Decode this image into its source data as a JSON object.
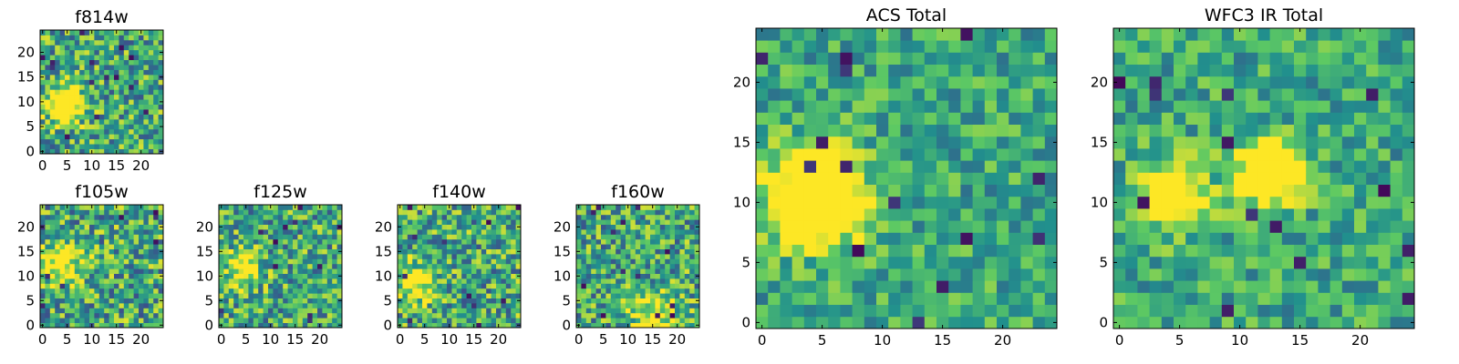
{
  "colormap": [
    "#440154",
    "#3b528b",
    "#21908d",
    "#5dc963",
    "#fde725"
  ],
  "chart_data": [
    {
      "type": "heatmap",
      "title": "f814w",
      "grid": [
        25,
        25
      ],
      "xlim": [
        0,
        25
      ],
      "ylim": [
        0,
        25
      ],
      "xticks": [
        0,
        5,
        10,
        15,
        20
      ],
      "yticks": [
        0,
        5,
        10,
        15,
        20
      ],
      "noise": 0.68,
      "blobs": [
        {
          "x": 4.5,
          "y": 9.5,
          "r": 2.4,
          "amp": 1.0
        }
      ],
      "sinks": 14
    },
    {
      "type": "heatmap",
      "title": "f105w",
      "grid": [
        25,
        25
      ],
      "xlim": [
        0,
        25
      ],
      "ylim": [
        0,
        25
      ],
      "xticks": [
        0,
        5,
        10,
        15,
        20
      ],
      "yticks": [
        0,
        5,
        10,
        15,
        20
      ],
      "noise": 0.72,
      "blobs": [
        {
          "x": 3.5,
          "y": 12.5,
          "r": 3.0,
          "amp": 0.55
        }
      ],
      "sinks": 8
    },
    {
      "type": "heatmap",
      "title": "f125w",
      "grid": [
        25,
        25
      ],
      "xlim": [
        0,
        25
      ],
      "ylim": [
        0,
        25
      ],
      "xticks": [
        0,
        5,
        10,
        15,
        20
      ],
      "yticks": [
        0,
        5,
        10,
        15,
        20
      ],
      "noise": 0.68,
      "blobs": [
        {
          "x": 4.5,
          "y": 11.5,
          "r": 2.6,
          "amp": 0.5
        }
      ],
      "sinks": 11
    },
    {
      "type": "heatmap",
      "title": "f140w",
      "grid": [
        25,
        25
      ],
      "xlim": [
        0,
        25
      ],
      "ylim": [
        0,
        25
      ],
      "xticks": [
        0,
        5,
        10,
        15,
        20
      ],
      "yticks": [
        0,
        5,
        10,
        15,
        20
      ],
      "noise": 0.7,
      "blobs": [
        {
          "x": 3.5,
          "y": 8.5,
          "r": 2.8,
          "amp": 0.5
        }
      ],
      "sinks": 11
    },
    {
      "type": "heatmap",
      "title": "f160w",
      "grid": [
        25,
        25
      ],
      "xlim": [
        0,
        25
      ],
      "ylim": [
        0,
        25
      ],
      "xticks": [
        0,
        5,
        10,
        15,
        20
      ],
      "yticks": [
        0,
        5,
        10,
        15,
        20
      ],
      "noise": 0.68,
      "blobs": [
        {
          "x": 15.5,
          "y": 2.5,
          "r": 3.2,
          "amp": 0.45
        }
      ],
      "sinks": 13
    },
    {
      "type": "heatmap",
      "title": "ACS Total",
      "grid": [
        25,
        25
      ],
      "xlim": [
        0,
        25
      ],
      "ylim": [
        0,
        25
      ],
      "xticks": [
        0,
        5,
        10,
        15,
        20
      ],
      "yticks": [
        0,
        5,
        10,
        15,
        20
      ],
      "noise": 0.45,
      "blobs": [
        {
          "x": 4.5,
          "y": 10.5,
          "r": 2.6,
          "amp": 1.1
        }
      ],
      "sinks": 14
    },
    {
      "type": "heatmap",
      "title": "WFC3 IR Total",
      "grid": [
        25,
        25
      ],
      "xlim": [
        0,
        25
      ],
      "ylim": [
        0,
        25
      ],
      "xticks": [
        0,
        5,
        10,
        15,
        20
      ],
      "yticks": [
        0,
        5,
        10,
        15,
        20
      ],
      "noise": 0.45,
      "blobs": [
        {
          "x": 12.5,
          "y": 12.5,
          "r": 1.8,
          "amp": 1.1
        },
        {
          "x": 4.5,
          "y": 10.5,
          "r": 2.0,
          "amp": 0.55
        }
      ],
      "sinks": 14
    }
  ]
}
